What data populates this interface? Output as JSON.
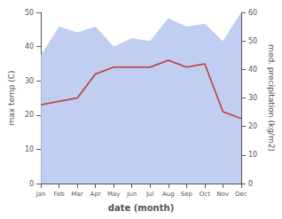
{
  "chart_data": {
    "type": "line",
    "xlabel": "date (month)",
    "ylabel": "max temp (C)",
    "y2label": "med. precipitation (kg/m2)",
    "categories": [
      "Jan",
      "Feb",
      "Mar",
      "Apr",
      "May",
      "Jun",
      "Jul",
      "Aug",
      "Sep",
      "Oct",
      "Nov",
      "Dec"
    ],
    "series": [
      {
        "type": "area",
        "color": "#b8c9f0",
        "axis": "y2",
        "values": [
          45,
          55,
          53,
          55,
          48,
          51,
          50,
          58,
          55,
          56,
          50,
          60
        ]
      },
      {
        "type": "line",
        "color": "#c0392b",
        "values": [
          23,
          24,
          25,
          32,
          34,
          34,
          34,
          36,
          34,
          35,
          21,
          19
        ]
      }
    ],
    "ylim": [
      0,
      50
    ],
    "yticks": [
      0,
      10,
      20,
      30,
      40,
      50
    ],
    "y2lim": [
      0,
      60
    ],
    "y2ticks": [
      0,
      10,
      20,
      30,
      40,
      50,
      60
    ],
    "grid": false
  }
}
